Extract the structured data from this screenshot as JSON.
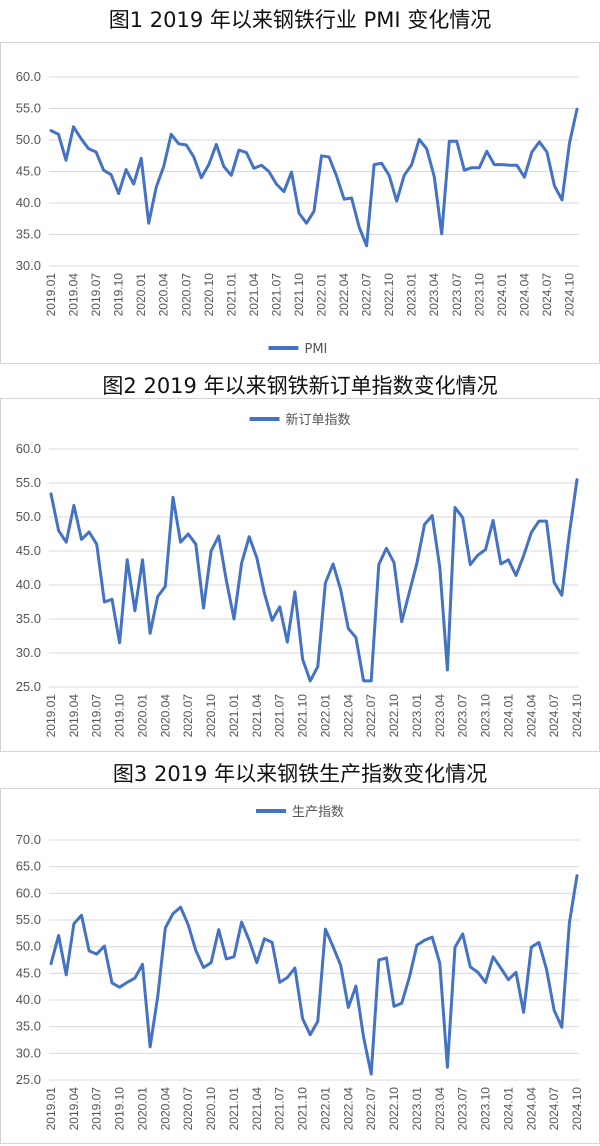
{
  "titles": [
    "图1  2019 年以来钢铁行业 PMI 变化情况",
    "图2  2019 年以来钢铁新订单指数变化情况",
    "图3  2019 年以来钢铁生产指数变化情况"
  ],
  "chart_data": [
    {
      "type": "line",
      "title": "图1  2019 年以来钢铁行业 PMI 变化情况",
      "x_tick_labels": [
        "2019.01",
        "2019.04",
        "2019.07",
        "2019.10",
        "2020.01",
        "2020.04",
        "2020.07",
        "2020.10",
        "2021.01",
        "2021.04",
        "2021.07",
        "2021.10",
        "2022.01",
        "2022.04",
        "2022.07",
        "2022.10",
        "2023.01",
        "2023.04",
        "2023.07",
        "2023.10",
        "2024.01",
        "2024.04",
        "2024.07",
        "2024.10"
      ],
      "ylim": [
        30,
        60
      ],
      "y_ticks": [
        "30.0",
        "35.0",
        "40.0",
        "45.0",
        "50.0",
        "55.0",
        "60.0"
      ],
      "legend": "bottom",
      "color": "#4472C4",
      "series": [
        {
          "name": "PMI",
          "values": [
            51.5,
            50.9,
            46.8,
            52.1,
            50.2,
            48.6,
            48.1,
            45.2,
            44.5,
            41.5,
            45.3,
            43.0,
            47.1,
            36.8,
            42.5,
            45.8,
            50.9,
            49.4,
            49.2,
            47.3,
            44.0,
            46.1,
            49.3,
            45.8,
            44.4,
            48.4,
            48.0,
            45.5,
            46.0,
            45.0,
            43.0,
            41.8,
            44.9,
            38.4,
            36.8,
            38.7,
            47.5,
            47.3,
            44.3,
            40.6,
            40.8,
            36.2,
            33.2,
            46.1,
            46.3,
            44.4,
            40.3,
            44.4,
            46.1,
            50.1,
            48.6,
            44.2,
            35.1,
            49.8,
            49.8,
            45.2,
            45.6,
            45.6,
            48.2,
            46.1,
            46.1,
            46.0,
            46.0,
            44.1,
            48.1,
            49.7,
            48.1,
            42.7,
            40.5,
            49.5,
            54.9
          ]
        }
      ],
      "grid": true
    },
    {
      "type": "line",
      "title": "图2  2019 年以来钢铁新订单指数变化情况",
      "x_tick_labels": [
        "2019.01",
        "2019.04",
        "2019.07",
        "2019.10",
        "2020.01",
        "2020.04",
        "2020.07",
        "2020.10",
        "2021.01",
        "2021.04",
        "2021.07",
        "2021.10",
        "2022.01",
        "2022.04",
        "2022.07",
        "2022.10",
        "2023.01",
        "2023.04",
        "2023.07",
        "2023.10",
        "2024.01",
        "2024.04",
        "2024.07",
        "2024.10"
      ],
      "ylim": [
        25,
        60
      ],
      "y_ticks": [
        "25.0",
        "30.0",
        "35.0",
        "40.0",
        "45.0",
        "50.0",
        "55.0",
        "60.0"
      ],
      "legend": "top",
      "color": "#4472C4",
      "series": [
        {
          "name": "新订单指数",
          "values": [
            53.4,
            48.0,
            46.3,
            51.7,
            46.7,
            47.8,
            46.0,
            37.5,
            37.9,
            31.5,
            43.7,
            36.2,
            43.7,
            32.9,
            38.3,
            39.8,
            52.9,
            46.3,
            47.5,
            46.0,
            36.6,
            45.0,
            47.2,
            40.7,
            35.0,
            43.2,
            47.1,
            44.0,
            38.8,
            34.8,
            36.8,
            31.6,
            39.0,
            29.1,
            25.9,
            28.0,
            40.3,
            43.1,
            39.3,
            33.6,
            32.3,
            25.9,
            25.9,
            43.0,
            45.4,
            43.3,
            34.6,
            38.9,
            43.2,
            48.9,
            50.2,
            42.6,
            27.5,
            51.4,
            49.9,
            43.0,
            44.4,
            45.2,
            49.5,
            43.1,
            43.7,
            41.4,
            44.3,
            47.7,
            49.4,
            49.4,
            40.4,
            38.5,
            47.6,
            55.5
          ]
        }
      ],
      "grid": true
    },
    {
      "type": "line",
      "title": "图3  2019 年以来钢铁生产指数变化情况",
      "x_tick_labels": [
        "2019.01",
        "2019.04",
        "2019.07",
        "2019.10",
        "2020.01",
        "2020.04",
        "2020.07",
        "2020.10",
        "2021.01",
        "2021.04",
        "2021.07",
        "2021.10",
        "2022.01",
        "2022.04",
        "2022.07",
        "2022.10",
        "2023.01",
        "2023.04",
        "2023.07",
        "2023.10",
        "2024.01",
        "2024.04",
        "2024.07",
        "2024.10"
      ],
      "ylim": [
        25,
        70
      ],
      "y_ticks": [
        "25.0",
        "30.0",
        "35.0",
        "40.0",
        "45.0",
        "50.0",
        "55.0",
        "60.0",
        "65.0",
        "70.0"
      ],
      "legend": "top",
      "color": "#4472C4",
      "series": [
        {
          "name": "生产指数",
          "values": [
            46.8,
            52.1,
            44.7,
            54.3,
            55.9,
            49.2,
            48.6,
            50.1,
            43.2,
            42.4,
            43.3,
            44.1,
            46.7,
            31.2,
            40.6,
            53.5,
            56.2,
            57.4,
            54.1,
            49.3,
            46.1,
            47.0,
            53.2,
            47.7,
            48.1,
            54.6,
            51.2,
            47.0,
            51.5,
            50.8,
            43.3,
            44.2,
            46.0,
            36.5,
            33.5,
            36.0,
            53.3,
            50.0,
            46.5,
            38.6,
            42.6,
            33.0,
            26.1,
            47.5,
            47.9,
            38.8,
            39.4,
            44.2,
            50.3,
            51.2,
            51.8,
            46.9,
            27.4,
            49.9,
            52.4,
            46.2,
            45.2,
            43.3,
            48.1,
            46.0,
            43.8,
            45.2,
            37.7,
            49.9,
            50.8,
            45.8,
            38.1,
            34.9,
            54.5,
            63.3
          ]
        }
      ],
      "grid": true
    }
  ]
}
